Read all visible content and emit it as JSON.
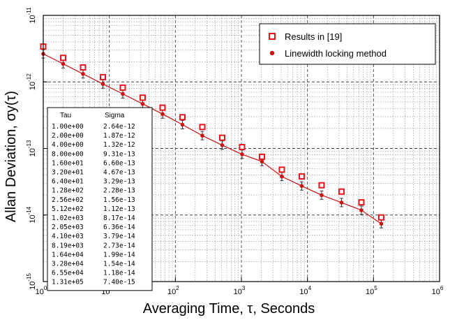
{
  "chart_data": {
    "type": "scatter",
    "xscale": "log",
    "yscale": "log",
    "xlim": [
      1,
      1000000
    ],
    "ylim": [
      1e-15,
      1e-11
    ],
    "grid": true,
    "xlabel": "Averaging Time, τ, Seconds",
    "ylabel": "Allan Deviation, σy(τ)",
    "x_ticks": [
      {
        "base": "10",
        "exp": "0"
      },
      {
        "base": "10",
        "exp": "1"
      },
      {
        "base": "10",
        "exp": "2"
      },
      {
        "base": "10",
        "exp": "3"
      },
      {
        "base": "10",
        "exp": "4"
      },
      {
        "base": "10",
        "exp": "5"
      },
      {
        "base": "10",
        "exp": "6"
      }
    ],
    "y_ticks": [
      {
        "base": "10",
        "exp": "-15"
      },
      {
        "base": "10",
        "exp": "-14"
      },
      {
        "base": "10",
        "exp": "-13"
      },
      {
        "base": "10",
        "exp": "-12"
      },
      {
        "base": "10",
        "exp": "-11"
      }
    ],
    "legend_position": "top-right",
    "series": [
      {
        "name": "Results in [19]",
        "marker": "open-square",
        "color": "#e8151b",
        "x": [
          1,
          2,
          4,
          8,
          16,
          32,
          64,
          128,
          256,
          512,
          1024,
          2048,
          4096,
          8192,
          16384,
          32768,
          65536,
          131072
        ],
        "y": [
          3.4e-12,
          2.3e-12,
          1.65e-12,
          1.18e-12,
          8.2e-13,
          5.8e-13,
          4.1e-13,
          2.95e-13,
          2.1e-13,
          1.45e-13,
          1.05e-13,
          7.5e-14,
          4.8e-14,
          3.8e-14,
          2.8e-14,
          2.25e-14,
          1.55e-14,
          9.2e-15
        ]
      },
      {
        "name": "Linewidth locking method",
        "marker": "filled-circle",
        "color": "#cc1111",
        "x": [
          1,
          2,
          4,
          8,
          16,
          32,
          64,
          128,
          256,
          512,
          1024,
          2048,
          4096,
          8192,
          16384,
          32768,
          65536,
          131072
        ],
        "y": [
          2.64e-12,
          1.87e-12,
          1.32e-12,
          9.31e-13,
          6.6e-13,
          4.67e-13,
          3.29e-13,
          2.28e-13,
          1.56e-13,
          1.12e-13,
          8.17e-14,
          6.36e-14,
          3.79e-14,
          2.73e-14,
          1.99e-14,
          1.54e-14,
          1.18e-14,
          7.4e-15
        ]
      }
    ],
    "table": {
      "headers": [
        "Tau",
        "Sigma"
      ],
      "rows": [
        [
          "1.00e+00",
          "2.64e-12"
        ],
        [
          "2.00e+00",
          "1.87e-12"
        ],
        [
          "4.00e+00",
          "1.32e-12"
        ],
        [
          "8.00e+00",
          "9.31e-13"
        ],
        [
          "1.60e+01",
          "6.60e-13"
        ],
        [
          "3.20e+01",
          "4.67e-13"
        ],
        [
          "6.40e+01",
          "3.29e-13"
        ],
        [
          "1.28e+02",
          "2.28e-13"
        ],
        [
          "2.56e+02",
          "1.56e-13"
        ],
        [
          "5.12e+02",
          "1.12e-13"
        ],
        [
          "1.02e+03",
          "8.17e-14"
        ],
        [
          "2.05e+03",
          "6.36e-14"
        ],
        [
          "4.10e+03",
          "3.79e-14"
        ],
        [
          "8.19e+03",
          "2.73e-14"
        ],
        [
          "1.64e+04",
          "1.99e-14"
        ],
        [
          "3.28e+04",
          "1.54e-14"
        ],
        [
          "6.55e+04",
          "1.18e-14"
        ],
        [
          "1.31e+05",
          "7.40e-15"
        ]
      ]
    }
  }
}
